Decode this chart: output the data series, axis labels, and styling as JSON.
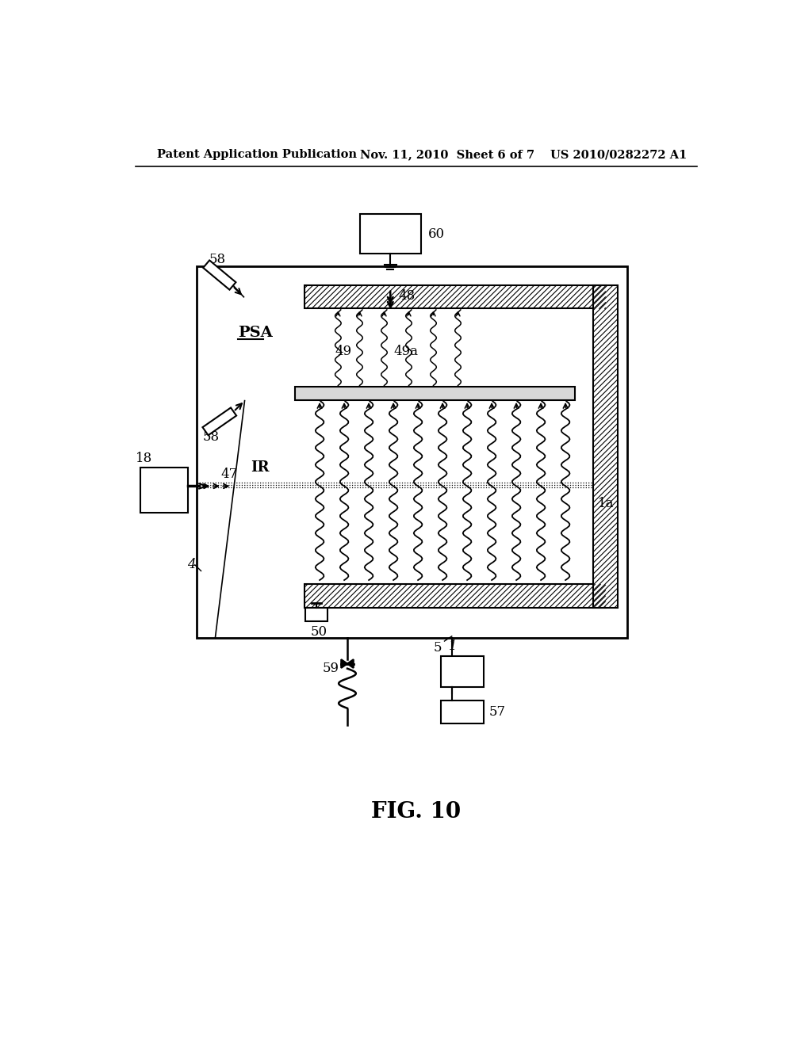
{
  "header_left": "Patent Application Publication",
  "header_center": "Nov. 11, 2010  Sheet 6 of 7",
  "header_right": "US 2010/0282272 A1",
  "figure_label": "FIG. 10",
  "bg_color": "#ffffff",
  "lc": "#000000"
}
